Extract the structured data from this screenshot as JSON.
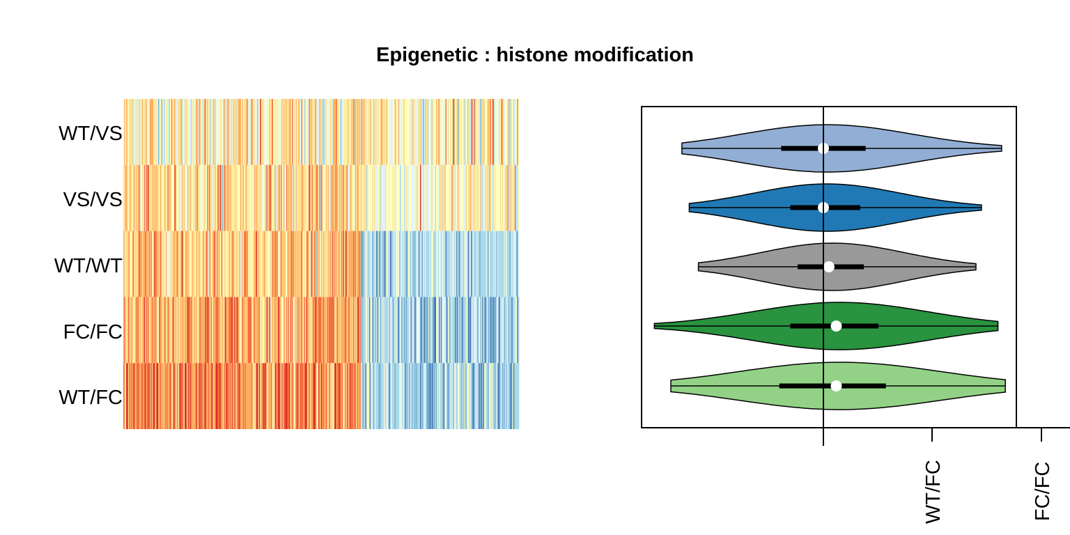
{
  "chart_data": [
    {
      "type": "heatmap",
      "title": "Epigenetic : histone modification",
      "rows": [
        "WT/VS",
        "VS/VS",
        "WT/WT",
        "FC/FC",
        "WT/FC"
      ],
      "n_columns": 420,
      "value_range": [
        -1,
        1
      ],
      "split_fraction": 0.6,
      "row_profiles": [
        {
          "row": "WT/VS",
          "left_mean": 0.08,
          "right_mean": 0.05,
          "noise": 0.55
        },
        {
          "row": "VS/VS",
          "left_mean": 0.22,
          "right_mean": -0.02,
          "noise": 0.45
        },
        {
          "row": "WT/WT",
          "left_mean": 0.32,
          "right_mean": -0.42,
          "noise": 0.4
        },
        {
          "row": "FC/FC",
          "left_mean": 0.45,
          "right_mean": -0.5,
          "noise": 0.45
        },
        {
          "row": "WT/FC",
          "left_mean": 0.55,
          "right_mean": -0.45,
          "noise": 0.45
        }
      ],
      "palette": [
        "#d73027",
        "#f46d43",
        "#fdae61",
        "#fee090",
        "#ffffbf",
        "#e0f3f8",
        "#abd9e9",
        "#74add1",
        "#4575b4"
      ]
    },
    {
      "type": "violin",
      "orientation": "horizontal",
      "xlim": [
        -1.0,
        1.0
      ],
      "reference_line": 0,
      "tick_labels": [
        "WT/FC",
        "FC/FC"
      ],
      "tick_values": [
        0.6,
        1.2
      ],
      "violins": [
        {
          "group": "WT/VS",
          "color": "#92aed4",
          "min": -0.77,
          "q1": -0.23,
          "median": 0.0,
          "q3": 0.23,
          "max": 0.97,
          "width": 0.34
        },
        {
          "group": "VS/VS",
          "color": "#2079b4",
          "min": -0.73,
          "q1": -0.18,
          "median": 0.0,
          "q3": 0.2,
          "max": 0.86,
          "width": 0.34
        },
        {
          "group": "WT/WT",
          "color": "#999999",
          "min": -0.68,
          "q1": -0.14,
          "median": 0.03,
          "q3": 0.22,
          "max": 0.83,
          "width": 0.34
        },
        {
          "group": "FC/FC",
          "color": "#29933f",
          "min": -0.92,
          "q1": -0.18,
          "median": 0.07,
          "q3": 0.3,
          "max": 0.95,
          "width": 0.34
        },
        {
          "group": "WT/FC",
          "color": "#93d286",
          "min": -0.83,
          "q1": -0.24,
          "median": 0.07,
          "q3": 0.34,
          "max": 0.99,
          "width": 0.34
        }
      ]
    }
  ]
}
